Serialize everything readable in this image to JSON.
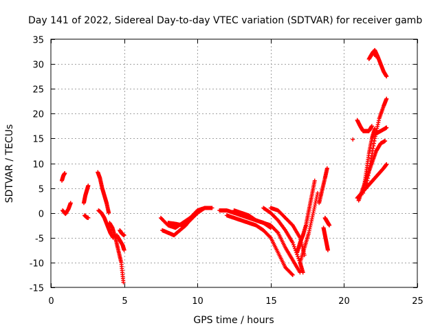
{
  "chart_data": {
    "type": "scatter",
    "title": "Day 141 of 2022, Sidereal Day-to-day VTEC variation (SDTVAR) for receiver gamb",
    "xlabel": "GPS time / hours",
    "ylabel": "SDTVAR / TECUs",
    "xlim": [
      0,
      25
    ],
    "ylim": [
      -15,
      35
    ],
    "xticks": [
      0,
      5,
      10,
      15,
      20,
      25
    ],
    "yticks": [
      -15,
      -10,
      -5,
      0,
      5,
      10,
      15,
      20,
      25,
      30,
      35
    ],
    "grid": true,
    "marker": "+",
    "color": "#ff0000",
    "segments": [
      {
        "x": [
          0.75,
          0.85,
          0.95
        ],
        "y": [
          6.5,
          7.5,
          8.0
        ]
      },
      {
        "x": [
          0.8,
          1.0,
          1.2,
          1.35
        ],
        "y": [
          0.5,
          -0.2,
          0.8,
          2.0
        ]
      },
      {
        "x": [
          2.25,
          2.35,
          2.45,
          2.55
        ],
        "y": [
          2.0,
          3.5,
          4.5,
          5.5
        ]
      },
      {
        "x": [
          2.3,
          2.45,
          2.55
        ],
        "y": [
          -0.5,
          -0.9,
          -1.0
        ]
      },
      {
        "x": [
          3.2,
          3.35,
          3.5,
          3.65,
          3.8,
          3.95
        ],
        "y": [
          8.2,
          7.0,
          5.0,
          3.5,
          2.0,
          0.0
        ]
      },
      {
        "x": [
          3.25,
          3.45,
          3.65,
          3.85,
          4.05,
          4.25
        ],
        "y": [
          0.5,
          0.0,
          -1.0,
          -2.5,
          -4.0,
          -5.0
        ]
      },
      {
        "x": [
          4.0,
          4.2,
          4.4,
          4.6,
          4.8,
          4.95
        ],
        "y": [
          -2.0,
          -3.0,
          -5.0,
          -7.5,
          -10.0,
          -14.0
        ]
      },
      {
        "x": [
          4.5,
          4.7,
          4.9,
          5.0
        ],
        "y": [
          -4.5,
          -5.5,
          -6.5,
          -7.5
        ]
      },
      {
        "x": [
          4.7,
          4.85,
          5.0
        ],
        "y": [
          -3.5,
          -4.2,
          -4.5
        ]
      },
      {
        "x": [
          7.5,
          8.0,
          8.5,
          9.0,
          9.5,
          10.0,
          10.5,
          11.0
        ],
        "y": [
          -1.0,
          -2.5,
          -3.0,
          -2.0,
          -1.0,
          0.5,
          1.0,
          1.0
        ]
      },
      {
        "x": [
          7.6,
          8.0,
          8.4,
          8.8,
          9.2,
          9.6,
          10.0
        ],
        "y": [
          -3.5,
          -4.0,
          -4.5,
          -3.5,
          -2.5,
          -1.0,
          0.0
        ]
      },
      {
        "x": [
          8.0,
          8.5,
          9.0,
          9.5,
          10.0,
          10.5
        ],
        "y": [
          -2.0,
          -2.2,
          -2.5,
          -1.5,
          0.0,
          1.0
        ]
      },
      {
        "x": [
          11.5,
          12.0,
          12.5,
          13.0,
          13.5,
          14.0,
          14.5,
          15.0
        ],
        "y": [
          0.5,
          0.5,
          0.0,
          -0.5,
          -1.0,
          -1.5,
          -2.0,
          -3.0
        ]
      },
      {
        "x": [
          12.0,
          12.5,
          13.0,
          13.5,
          14.0,
          14.5,
          15.0,
          15.5,
          16.0,
          16.5
        ],
        "y": [
          -0.5,
          -1.0,
          -1.5,
          -2.0,
          -2.5,
          -3.5,
          -5.0,
          -8.0,
          -11.0,
          -12.5
        ]
      },
      {
        "x": [
          12.5,
          13.0,
          13.5,
          14.0,
          14.5,
          15.0,
          15.5,
          16.0,
          16.5,
          17.0
        ],
        "y": [
          0.5,
          0.0,
          -0.5,
          -1.5,
          -2.0,
          -2.5,
          -4.0,
          -7.0,
          -9.5,
          -12.0
        ]
      },
      {
        "x": [
          14.5,
          15.0,
          15.5,
          16.0,
          16.5,
          17.0,
          17.2
        ],
        "y": [
          1.0,
          0.0,
          -1.5,
          -3.5,
          -6.0,
          -10.0,
          -12.0
        ]
      },
      {
        "x": [
          15.0,
          15.5,
          16.0,
          16.5,
          17.0,
          17.3
        ],
        "y": [
          1.0,
          0.5,
          -1.0,
          -2.5,
          -5.0,
          -8.5
        ]
      },
      {
        "x": [
          16.8,
          17.0,
          17.2,
          17.4,
          17.6,
          17.8,
          18.0
        ],
        "y": [
          -8.0,
          -6.0,
          -4.5,
          -2.5,
          0.5,
          3.5,
          6.5
        ]
      },
      {
        "x": [
          17.0,
          17.3,
          17.6,
          17.9,
          18.2
        ],
        "y": [
          -10.0,
          -7.0,
          -4.0,
          0.0,
          4.0
        ]
      },
      {
        "x": [
          18.3,
          18.5,
          18.7,
          18.85
        ],
        "y": [
          2.0,
          4.5,
          7.0,
          9.0
        ]
      },
      {
        "x": [
          18.6,
          18.7,
          18.8,
          18.9
        ],
        "y": [
          -3.0,
          -4.5,
          -6.0,
          -7.5
        ]
      },
      {
        "x": [
          18.7,
          18.8,
          18.9,
          19.0
        ],
        "y": [
          -1.0,
          -1.5,
          -2.0,
          -2.5
        ]
      },
      {
        "x": [
          20.6
        ],
        "y": [
          14.8
        ]
      },
      {
        "x": [
          20.9,
          21.1,
          21.3,
          21.5,
          21.7,
          21.9
        ],
        "y": [
          18.7,
          17.5,
          16.5,
          16.5,
          16.5,
          17.5
        ]
      },
      {
        "x": [
          20.9,
          21.2,
          21.5,
          21.8,
          22.1,
          22.4,
          22.7,
          22.9
        ],
        "y": [
          3.0,
          4.0,
          5.0,
          6.0,
          7.0,
          8.0,
          9.0,
          9.8
        ]
      },
      {
        "x": [
          21.0,
          21.3,
          21.6,
          21.9,
          22.2,
          22.5,
          22.8
        ],
        "y": [
          2.5,
          5.0,
          7.5,
          10.0,
          12.5,
          14.0,
          14.5
        ]
      },
      {
        "x": [
          21.5,
          21.8,
          22.1,
          22.4,
          22.7,
          22.9
        ],
        "y": [
          5.0,
          10.0,
          15.0,
          19.0,
          21.5,
          23.0
        ]
      },
      {
        "x": [
          21.3,
          21.5,
          21.7,
          21.9,
          22.1
        ],
        "y": [
          4.0,
          8.0,
          12.0,
          15.0,
          17.0
        ]
      },
      {
        "x": [
          22.2,
          22.5,
          22.8,
          22.9
        ],
        "y": [
          16.0,
          16.5,
          17.0,
          17.2
        ]
      },
      {
        "x": [
          21.7,
          21.9,
          22.1,
          22.3,
          22.5,
          22.7,
          22.9
        ],
        "y": [
          31.0,
          32.0,
          32.8,
          31.5,
          30.0,
          28.5,
          27.5
        ]
      },
      {
        "x": [
          21.8,
          22.0,
          22.2
        ],
        "y": [
          31.5,
          32.5,
          31.5
        ]
      }
    ]
  }
}
